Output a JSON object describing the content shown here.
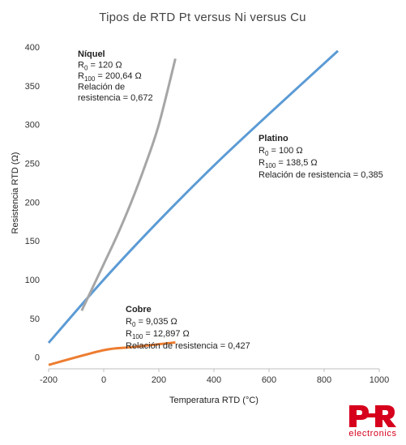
{
  "chart_data": {
    "type": "line",
    "title": "Tipos de RTD Pt versus Ni versus Cu",
    "xlabel": "Temperatura RTD (°C)",
    "ylabel": "Resistencia RTD (Ω)",
    "xlim": [
      -200,
      1000
    ],
    "ylim": [
      -15,
      400
    ],
    "xticks": [
      "-200",
      "0",
      "200",
      "400",
      "600",
      "800",
      "1000"
    ],
    "yticks": [
      "0",
      "50",
      "100",
      "150",
      "200",
      "250",
      "300",
      "350",
      "400"
    ],
    "grid": false,
    "series": [
      {
        "name": "Níquel",
        "color": "#a6a6a6",
        "x": [
          -80,
          -40,
          0,
          50,
          100,
          150,
          200,
          260
        ],
        "y": [
          60,
          90,
          120,
          158,
          200,
          247,
          300,
          385
        ]
      },
      {
        "name": "Platino",
        "color": "#5b9bd5",
        "x": [
          -200,
          0,
          200,
          400,
          600,
          850
        ],
        "y": [
          18.5,
          100,
          175.8,
          247.1,
          313.7,
          395
        ]
      },
      {
        "name": "Cobre",
        "color": "#ed7d31",
        "x": [
          -200,
          0,
          100,
          260
        ],
        "y": [
          -10,
          9.035,
          12.897,
          19
        ]
      }
    ],
    "annotations": [
      {
        "series": "Níquel",
        "lines": [
          "R0 = 120 Ω",
          "R100 = 200,64 Ω",
          "Relación de",
          "resistencia = 0,672"
        ]
      },
      {
        "series": "Platino",
        "lines": [
          "R0 = 100 Ω",
          "R100 = 138,5 Ω",
          "Relación de resistencia = 0,385"
        ]
      },
      {
        "series": "Cobre",
        "lines": [
          "R0 = 9,035 Ω",
          "R100 = 12,897 Ω",
          "Relación de resistencia = 0,427"
        ]
      }
    ]
  },
  "logo": {
    "text": "electronics",
    "mark": "PR",
    "color": "#d6001c"
  }
}
